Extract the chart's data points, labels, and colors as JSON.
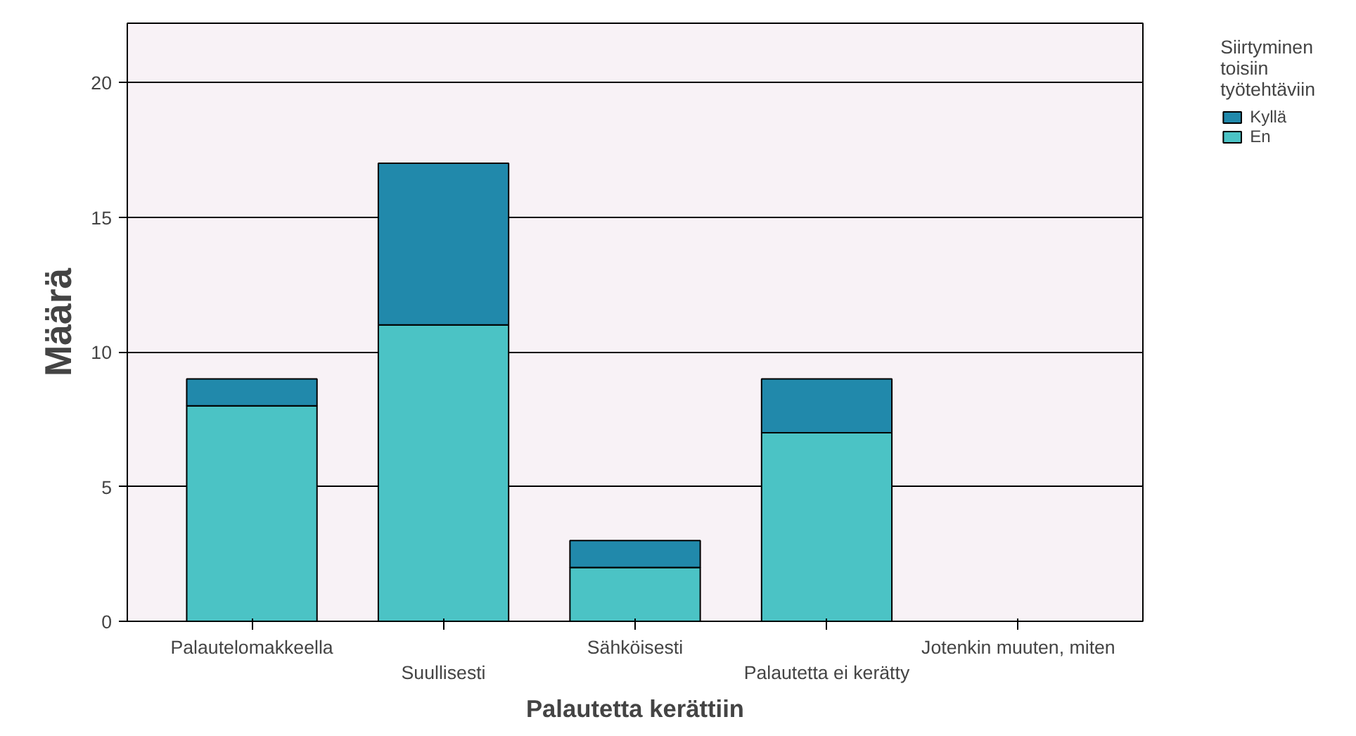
{
  "chart_data": {
    "type": "bar",
    "stacked": true,
    "xlabel": "Palautetta kerättiin",
    "ylabel": "Määrä",
    "legend_title": "Siirtyminen toisiin työtehtäviin",
    "categories": [
      "Palautelomakkeella",
      "Suullisesti",
      "Sähköisesti",
      "Palautetta ei kerätty",
      "Jotenkin muuten, miten"
    ],
    "series": [
      {
        "name": "En",
        "color": "#4bc3c5",
        "values": [
          8,
          11,
          2,
          7,
          0
        ]
      },
      {
        "name": "Kyllä",
        "color": "#2189ab",
        "values": [
          1,
          6,
          1,
          2,
          0
        ]
      }
    ],
    "ylim": [
      0,
      22.2
    ],
    "yticks": [
      0,
      5,
      10,
      15,
      20
    ],
    "grid": "y",
    "legend": "top right"
  }
}
